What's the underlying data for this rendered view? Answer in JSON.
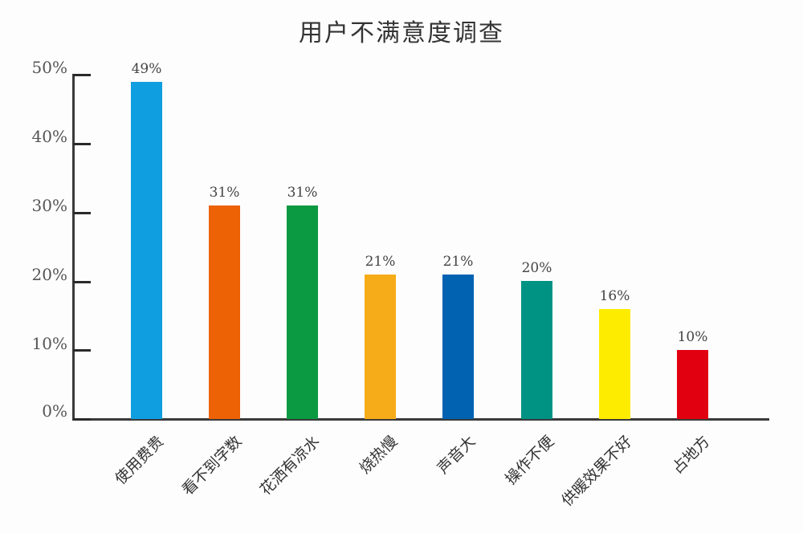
{
  "chart_data": {
    "type": "bar",
    "title": "用户不满意度调查",
    "xlabel": "",
    "ylabel": "",
    "ylim": [
      0,
      50
    ],
    "yticks": [
      "0%",
      "10%",
      "20%",
      "30%",
      "40%",
      "50%"
    ],
    "grid": false,
    "legend": null,
    "categories": [
      "使用费贵",
      "看不到字数",
      "花洒有凉水",
      "烧热慢",
      "声音大",
      "操作不便",
      "供暖效果不好",
      "占地方"
    ],
    "values": [
      49,
      31,
      31,
      21,
      21,
      20,
      16,
      10
    ],
    "value_labels": [
      "49%",
      "31%",
      "31%",
      "21%",
      "21%",
      "20%",
      "16%",
      "10%"
    ],
    "colors": [
      "#0f9ee0",
      "#ec6205",
      "#0b9a42",
      "#f6ac18",
      "#0062b1",
      "#009384",
      "#fdec00",
      "#e00010"
    ],
    "unit": "%"
  }
}
